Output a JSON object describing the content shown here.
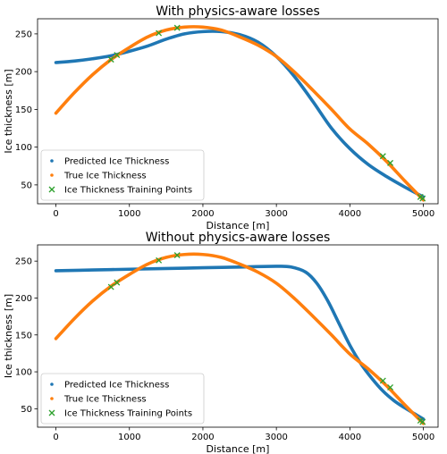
{
  "chart_data": [
    {
      "type": "line",
      "title": "With physics-aware losses",
      "xlabel": "Distance [m]",
      "ylabel": "Ice thickness [m]",
      "xlim": [
        -250,
        5200
      ],
      "ylim": [
        25,
        270
      ],
      "xticks": [
        0,
        1000,
        2000,
        3000,
        4000,
        5000
      ],
      "yticks": [
        50,
        100,
        150,
        200,
        250
      ],
      "grid": false,
      "legend_position": "lower-left",
      "series": [
        {
          "name": "Predicted Ice Thickness",
          "color": "#1f77b4",
          "marker": "dot",
          "x": [
            0,
            250,
            500,
            750,
            1000,
            1250,
            1500,
            1750,
            2000,
            2250,
            2500,
            2750,
            3000,
            3250,
            3500,
            3750,
            4000,
            4250,
            4500,
            4750,
            5000
          ],
          "y": [
            212,
            214,
            217,
            221,
            227,
            234,
            243,
            250,
            253,
            253,
            249,
            239,
            220,
            193,
            160,
            125,
            98,
            77,
            61,
            47,
            34
          ]
        },
        {
          "name": "True Ice Thickness",
          "color": "#ff7f0e",
          "marker": "dot",
          "x": [
            0,
            250,
            500,
            750,
            1000,
            1250,
            1500,
            1750,
            2000,
            2250,
            2500,
            2750,
            3000,
            3250,
            3500,
            3750,
            4000,
            4250,
            4500,
            4750,
            5000
          ],
          "y": [
            145,
            172,
            196,
            216,
            232,
            246,
            255,
            259,
            259,
            255,
            246,
            235,
            220,
            199,
            175,
            150,
            124,
            104,
            81,
            55,
            30
          ]
        },
        {
          "name": "Ice Thickness Training Points",
          "color": "#2ca02c",
          "marker": "x",
          "x": [
            750,
            830,
            1400,
            1650,
            4450,
            4550,
            4960,
            4990
          ],
          "y": [
            216,
            222,
            251,
            258,
            88,
            79,
            34,
            32
          ]
        }
      ]
    },
    {
      "type": "line",
      "title": "Without physics-aware losses",
      "xlabel": "Distance [m]",
      "ylabel": "Ice thickness [m]",
      "xlim": [
        -250,
        5200
      ],
      "ylim": [
        25,
        272
      ],
      "xticks": [
        0,
        1000,
        2000,
        3000,
        4000,
        5000
      ],
      "yticks": [
        50,
        100,
        150,
        200,
        250
      ],
      "grid": false,
      "legend_position": "lower-left",
      "series": [
        {
          "name": "Predicted Ice Thickness",
          "color": "#1f77b4",
          "marker": "dot",
          "x": [
            0,
            500,
            1000,
            1500,
            2000,
            2500,
            3000,
            3200,
            3400,
            3550,
            3700,
            3850,
            4000,
            4150,
            4300,
            4450,
            4600,
            4750,
            4900,
            5000
          ],
          "y": [
            237,
            238,
            239,
            240,
            241,
            242,
            243,
            242,
            235,
            220,
            196,
            166,
            136,
            111,
            91,
            74,
            61,
            51,
            42,
            36
          ]
        },
        {
          "name": "True Ice Thickness",
          "color": "#ff7f0e",
          "marker": "dot",
          "x": [
            0,
            250,
            500,
            750,
            1000,
            1250,
            1500,
            1750,
            2000,
            2250,
            2500,
            2750,
            3000,
            3250,
            3500,
            3750,
            4000,
            4250,
            4500,
            4750,
            5000
          ],
          "y": [
            145,
            172,
            196,
            216,
            232,
            246,
            255,
            259,
            259,
            255,
            246,
            235,
            220,
            199,
            175,
            150,
            124,
            104,
            81,
            55,
            30
          ]
        },
        {
          "name": "Ice Thickness Training Points",
          "color": "#2ca02c",
          "marker": "x",
          "x": [
            750,
            830,
            1400,
            1650,
            4450,
            4550,
            4960,
            4990
          ],
          "y": [
            215,
            221,
            251,
            258,
            88,
            79,
            34,
            32
          ]
        }
      ]
    }
  ]
}
